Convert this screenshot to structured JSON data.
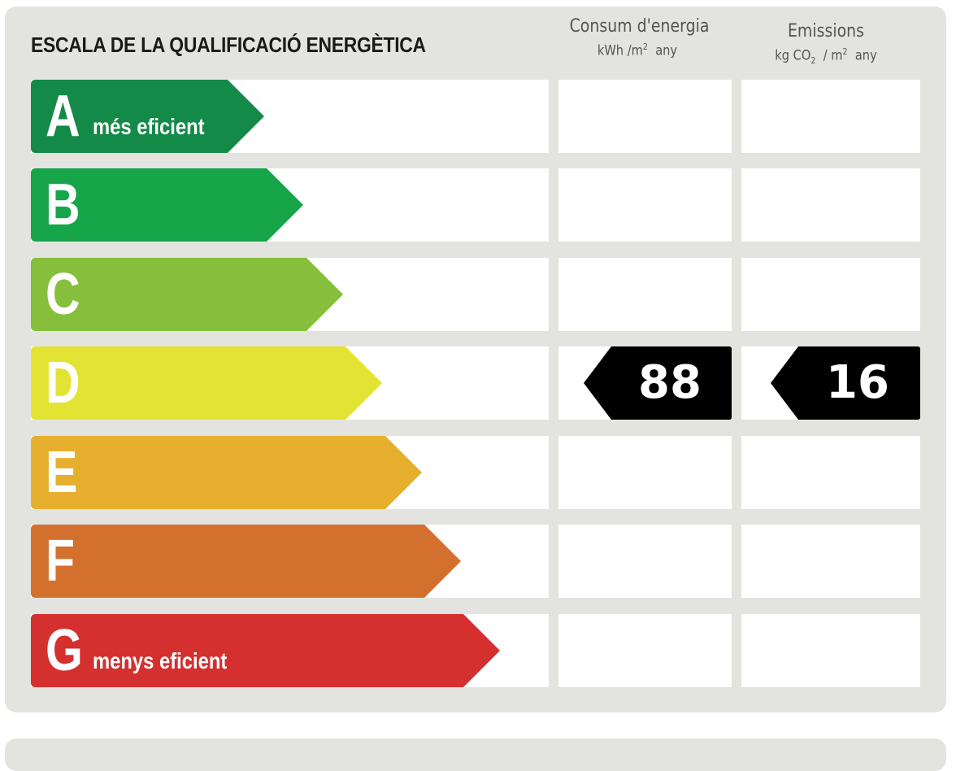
{
  "title": "ESCALA DE LA QUALIFICACIÓ ENERGÈTICA",
  "columns": {
    "energy": {
      "title": "Consum d'energia",
      "unit_pre": "kWh /m",
      "unit_sup": "2",
      "unit_post": "any"
    },
    "emissions": {
      "title": "Emissions",
      "unit_pre": "kg CO",
      "unit_sub": "2",
      "unit_mid": "/ m",
      "unit_sup": "2",
      "unit_post": "any"
    }
  },
  "ratings": [
    {
      "letter": "A",
      "caption": "més eficient",
      "color": "#138a47"
    },
    {
      "letter": "B",
      "caption": "",
      "color": "#17a54a"
    },
    {
      "letter": "C",
      "caption": "",
      "color": "#86bf3c"
    },
    {
      "letter": "D",
      "caption": "",
      "color": "#e3e333"
    },
    {
      "letter": "E",
      "caption": "",
      "color": "#e6b02e"
    },
    {
      "letter": "F",
      "caption": "",
      "color": "#d4702e"
    },
    {
      "letter": "G",
      "caption": "menys eficient",
      "color": "#d43030"
    }
  ],
  "current": {
    "rating": "D",
    "energy_value": "88",
    "emissions_value": "16",
    "marker_color": "#000000"
  }
}
